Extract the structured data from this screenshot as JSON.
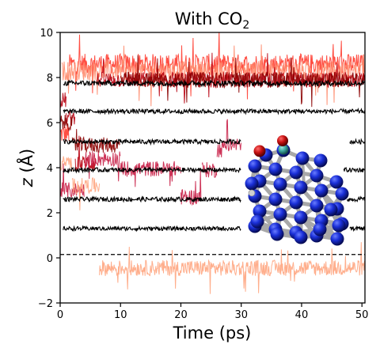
{
  "chart_data": {
    "type": "line",
    "title": "With CO",
    "title_subscript": "2",
    "xlabel": "Time (ps)",
    "ylabel_italic": "z",
    "ylabel_unit": "(Å)",
    "xlim": [
      0,
      50.5
    ],
    "ylim": [
      -2,
      10
    ],
    "x_ticks": [
      0,
      10,
      20,
      30,
      40,
      50
    ],
    "y_ticks": [
      -2,
      0,
      2,
      4,
      6,
      8,
      10
    ],
    "reference_line": {
      "y": 0.15,
      "style": "dashed",
      "color": "#000000"
    },
    "noise_amplitude_note": "traces are noisy time series; values are mean z levels per time segment",
    "series": [
      {
        "color": "#000000",
        "noise": 0.12,
        "segments": [
          [
            [
              0.5,
              50.5
            ],
            7.75
          ]
        ]
      },
      {
        "color": "#000000",
        "noise": 0.1,
        "segments": [
          [
            [
              0.5,
              50.5
            ],
            6.5
          ]
        ]
      },
      {
        "color": "#000000",
        "noise": 0.1,
        "segments": [
          [
            [
              0.5,
              30.0
            ],
            5.15
          ],
          [
            [
              48.0,
              50.5
            ],
            5.15
          ]
        ]
      },
      {
        "color": "#000000",
        "noise": 0.1,
        "segments": [
          [
            [
              0.5,
              30.0
            ],
            3.9
          ],
          [
            [
              47.0,
              50.5
            ],
            3.9
          ]
        ]
      },
      {
        "color": "#000000",
        "noise": 0.1,
        "segments": [
          [
            [
              0.5,
              30.0
            ],
            2.6
          ],
          [
            [
              47.5,
              50.5
            ],
            2.6
          ]
        ]
      },
      {
        "color": "#000000",
        "noise": 0.09,
        "segments": [
          [
            [
              0.5,
              30.0
            ],
            1.3
          ],
          [
            [
              48.0,
              50.5
            ],
            1.3
          ]
        ]
      },
      {
        "color": "#ff3b2f",
        "noise": 0.45,
        "segments": [
          [
            [
              0.0,
              1.5
            ],
            5.5
          ],
          [
            [
              1.5,
              50.5
            ],
            8.6
          ]
        ]
      },
      {
        "color": "#ff8a6a",
        "noise": 0.45,
        "segments": [
          [
            [
              0.3,
              50.5
            ],
            8.3
          ]
        ]
      },
      {
        "color": "#b80010",
        "noise": 0.35,
        "segments": [
          [
            [
              0.0,
              1.0
            ],
            7.0
          ],
          [
            [
              1.0,
              2.5
            ],
            6.2
          ],
          [
            [
              2.5,
              6.0
            ],
            4.2
          ],
          [
            [
              6.0,
              50.5
            ],
            7.9
          ]
        ]
      },
      {
        "color": "#8b0000",
        "noise": 0.35,
        "segments": [
          [
            [
              0.0,
              2.0
            ],
            6.0
          ],
          [
            [
              2.0,
              10.0
            ],
            5.0
          ],
          [
            [
              10.0,
              50.5
            ],
            7.9
          ]
        ]
      },
      {
        "color": "#c81e46",
        "noise": 0.35,
        "segments": [
          [
            [
              0.0,
              4.0
            ],
            3.0
          ],
          [
            [
              4.0,
              10.0
            ],
            4.4
          ],
          [
            [
              10.0,
              20.0
            ],
            3.95
          ],
          [
            [
              20.0,
              23.5
            ],
            2.7
          ],
          [
            [
              23.5,
              26.0
            ],
            3.9
          ],
          [
            [
              26.0,
              27.0
            ],
            4.8
          ],
          [
            [
              27.0,
              30.0
            ],
            5.0
          ]
        ]
      },
      {
        "color": "#ffa580",
        "noise": 0.35,
        "segments": [
          [
            [
              0.0,
              2.0
            ],
            4.2
          ],
          [
            [
              2.0,
              6.5
            ],
            3.2
          ],
          [
            [
              6.5,
              50.5
            ],
            -0.45
          ]
        ]
      }
    ]
  },
  "inset": {
    "description_icon": "molecule-on-cluster",
    "atom_colors": {
      "surface": "#1428d0",
      "oxygen": "#c01010",
      "carbon": "#3fa9a0",
      "bond": "#a8a8a8"
    }
  }
}
